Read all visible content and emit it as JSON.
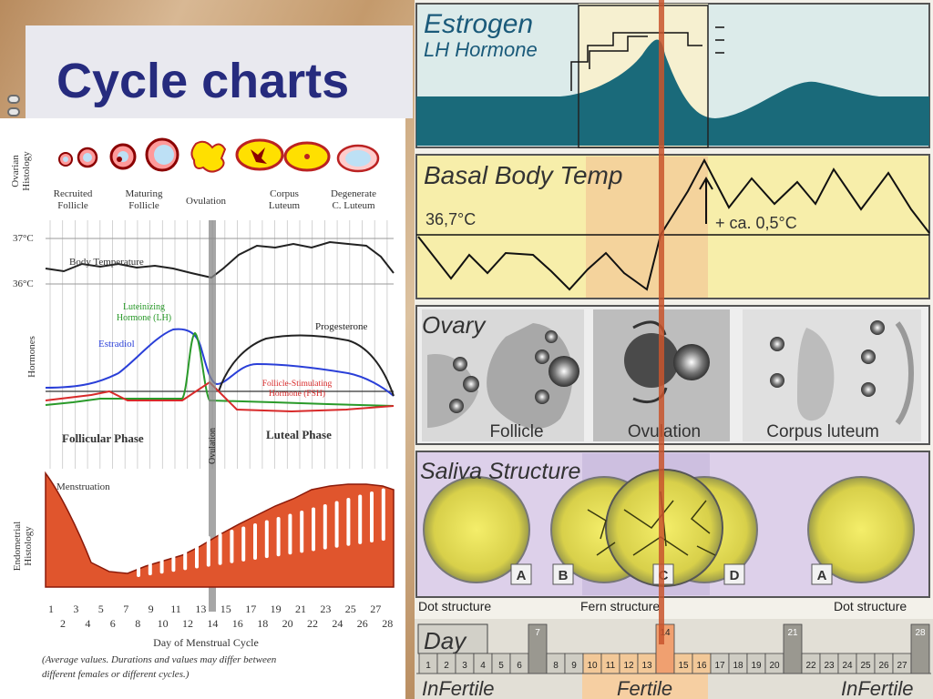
{
  "slide": {
    "title": "Cycle charts"
  },
  "left": {
    "ovarian_axis": "Ovarian\nHistology",
    "stages": [
      "Recruited\nFollicle",
      "Maturing\nFollicle",
      "Ovulation",
      "Corpus\nLuteum",
      "Degenerate\nC. Luteum"
    ],
    "temp_high": "37°C",
    "temp_low": "36°C",
    "body_temp": "Body Temperature",
    "hormones_axis": "Hormones",
    "lh": "Luteinizing\nHormone (LH)",
    "estradiol": "Estradiol",
    "progesterone": "Progesterone",
    "fsh": "Follicle-Stimulating\nHormone (FSH)",
    "follicular": "Follicular Phase",
    "luteal": "Luteal Phase",
    "ovulation_vertical": "Ovulation",
    "endo_axis": "Endometrial\nHistology",
    "menstruation": "Menstruation",
    "days_top": [
      "1",
      "3",
      "5",
      "7",
      "9",
      "11",
      "13",
      "15",
      "17",
      "19",
      "21",
      "23",
      "25",
      "27"
    ],
    "days_bottom": [
      "2",
      "4",
      "6",
      "8",
      "10",
      "12",
      "14",
      "16",
      "18",
      "20",
      "22",
      "24",
      "26",
      "28"
    ],
    "xlabel": "Day of Menstrual Cycle",
    "footnote_1": "(Average values. Durations and values may differ between",
    "footnote_2": "different females or different cycles.)"
  },
  "right": {
    "estrogen": "Estrogen",
    "lh_hormone": "LH Hormone",
    "bbt": "Basal Body Temp",
    "temp_value": "36,7°C",
    "temp_rise": "+ ca. 0,5°C",
    "ovary": "Ovary",
    "ovary_labels": [
      "Follicle",
      "Ovulation",
      "Corpus luteum"
    ],
    "saliva": "Saliva Structure",
    "saliva_letters": [
      "A",
      "B",
      "C",
      "D",
      "A"
    ],
    "dot_left": "Dot structure",
    "fern": "Fern structure",
    "dot_right": "Dot structure",
    "day": "Day",
    "days": [
      "1",
      "2",
      "3",
      "4",
      "5",
      "6",
      "7",
      "8",
      "9",
      "10",
      "11",
      "12",
      "13",
      "14",
      "15",
      "16",
      "17",
      "18",
      "19",
      "20",
      "21",
      "22",
      "23",
      "24",
      "25",
      "26",
      "27",
      "28"
    ],
    "infertile_left": "InFertile",
    "fertile": "Fertile",
    "infertile_right": "InFertile"
  },
  "colors": {
    "title": "#262b7e",
    "menstruation": "#e0552d",
    "lh": "#2a9a2a",
    "estradiol": "#2a3fd8",
    "fsh": "#d82a2a",
    "teal": "#1a6a7a",
    "temp_panel": "#f7eeaa",
    "saliva_panel": "#ddd0ea",
    "fertile": "#f6cfa2",
    "ovulation_marker": "#c8552d"
  }
}
